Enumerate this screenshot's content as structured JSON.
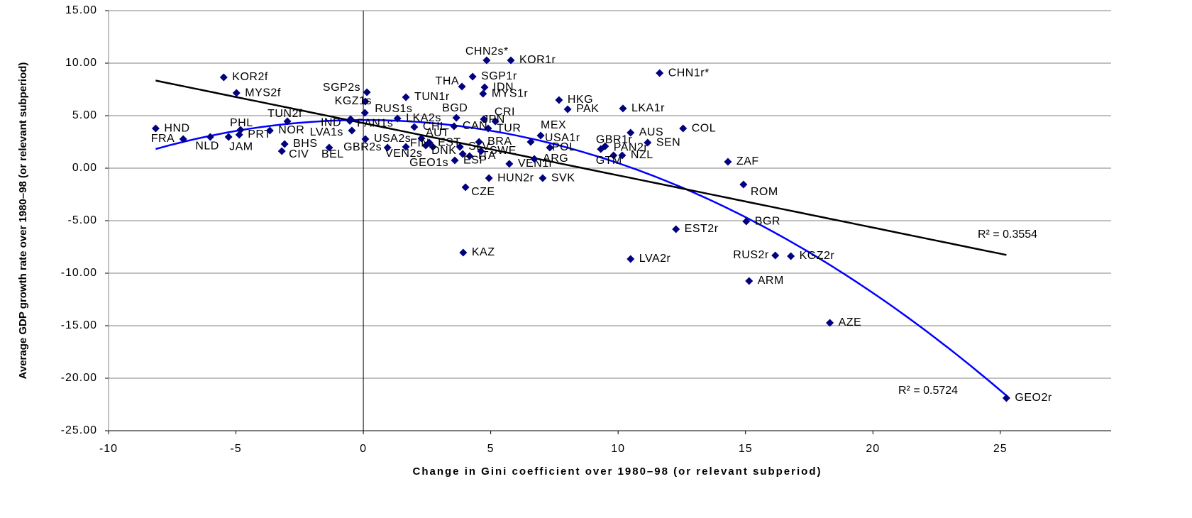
{
  "chart_data": {
    "type": "scatter",
    "xlabel": "Change in Gini coefficient over 1980–98 (or relevant subperiod)",
    "ylabel": "Average GDP growth rate over 1980–98 (or relevant subperiod)",
    "color": "#000080",
    "linear_trend_color": "#000000",
    "poly_trend_color": "#0000ff",
    "linear_r2_label": "R² = 0.3554",
    "poly_r2_label": "R² = 0.5724",
    "xlim": [
      -10,
      29.35
    ],
    "ylim": [
      -25,
      15
    ],
    "xticks": [
      -10,
      -5,
      0,
      5,
      10,
      15,
      20,
      25
    ],
    "yticks": [
      {
        "value": -25,
        "label": "-25.00"
      },
      {
        "value": -20,
        "label": "-20.00"
      },
      {
        "value": -15,
        "label": "-15.00"
      },
      {
        "value": -10,
        "label": "-10.00"
      },
      {
        "value": -5,
        "label": "-5.00"
      },
      {
        "value": 0,
        "label": "0.00"
      },
      {
        "value": 5,
        "label": "5.00"
      },
      {
        "value": 10,
        "label": "10.00"
      },
      {
        "value": 15,
        "label": "15.00"
      }
    ],
    "grid": true,
    "labels": [
      "HND",
      "FRA",
      "NLD",
      "JAM",
      "PRT",
      "PHL",
      "KOR2f",
      "MYS2f",
      "NOR",
      "TUN2f",
      "BHS",
      "CIV",
      "BEL",
      "GBR2s",
      "IND",
      "LVA1s",
      "PAN1s",
      "USA2s",
      "SGP2s",
      "KGZ1s",
      "RUS1s",
      "TUN1r",
      "LKA2s",
      "BGD",
      "CHN2s*",
      "KOR1r",
      "THA",
      "SGP1r",
      "IDN",
      "MYS1r",
      "CRI",
      "JPN",
      "TUR",
      "CHL",
      "CAN",
      "AUT",
      "FIN",
      "EST",
      "BRA",
      "DNK",
      "SLV",
      "ITA",
      "SWE",
      "VEN2s",
      "GEO1s",
      "ESP",
      "VEN1r",
      "HUN2r",
      "SVK",
      "CZE",
      "MEX",
      "USA1r",
      "POL",
      "ARG",
      "HKG",
      "PAK",
      "LKA1r",
      "CHN1r*",
      "GBR1r",
      "PAN2r",
      "GTM",
      "NZL",
      "AUS",
      "SEN",
      "COL",
      "ZAF",
      "ROM",
      "BGR",
      "EST2r",
      "KAZ",
      "LVA2r",
      "RUS2r",
      "KGZ2r",
      "ARM",
      "AZE",
      "GEO2r"
    ],
    "x": [
      -8.15,
      -7.07,
      -6.01,
      -5.29,
      -4.87,
      -4.82,
      -5.48,
      -4.98,
      -3.67,
      -2.98,
      -3.09,
      -3.2,
      -1.34,
      0.95,
      -0.53,
      -0.45,
      -0.5,
      0.08,
      0.14,
      0.08,
      0.06,
      1.67,
      1.34,
      3.65,
      4.84,
      5.79,
      3.87,
      4.29,
      4.76,
      4.7,
      4.73,
      5.18,
      4.9,
      2.0,
      3.56,
      2.28,
      2.45,
      2.59,
      4.54,
      2.73,
      3.79,
      4.17,
      4.62,
      1.67,
      3.9,
      3.59,
      5.73,
      4.93,
      7.04,
      4.01,
      6.96,
      7.32,
      6.57,
      6.71,
      7.68,
      8.02,
      10.19,
      11.63,
      9.49,
      9.32,
      9.82,
      10.16,
      10.49,
      11.16,
      12.55,
      14.31,
      14.92,
      15.03,
      12.27,
      3.92,
      10.49,
      16.17,
      16.78,
      15.14,
      18.31,
      25.24
    ],
    "values": [
      3.78,
      2.77,
      2.97,
      2.97,
      3.18,
      3.65,
      8.65,
      7.16,
      3.58,
      4.46,
      2.3,
      1.62,
      1.96,
      1.96,
      4.5,
      3.58,
      4.66,
      2.77,
      7.23,
      6.35,
      5.27,
      6.76,
      4.73,
      4.8,
      10.27,
      10.27,
      7.77,
      8.72,
      7.7,
      7.09,
      4.66,
      4.46,
      3.78,
      3.92,
      3.99,
      2.84,
      2.16,
      2.43,
      2.5,
      2.03,
      2.03,
      1.15,
      1.62,
      2.03,
      1.35,
      0.74,
      0.41,
      -0.95,
      -0.95,
      -1.82,
      3.11,
      1.96,
      2.5,
      0.88,
      6.49,
      5.61,
      5.68,
      9.05,
      2.09,
      1.82,
      1.22,
      1.22,
      3.38,
      2.43,
      3.78,
      0.61,
      -1.55,
      -5.07,
      -5.81,
      -8.04,
      -8.65,
      -8.31,
      -8.38,
      -10.74,
      -14.73,
      -21.89
    ]
  }
}
